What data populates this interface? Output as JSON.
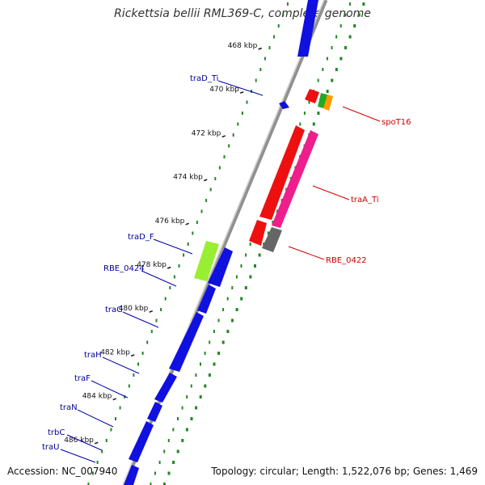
{
  "title": "Rickettsia bellii RML369-C, complete genome",
  "footer": {
    "accession": "Accession: NC_007940",
    "summary": "Topology: circular; Length: 1,522,076 bp; Genes: 1,469"
  },
  "ticks": [
    {
      "kbp": 468,
      "label": "468 kbp"
    },
    {
      "kbp": 470,
      "label": "470 kbp"
    },
    {
      "kbp": 472,
      "label": "472 kbp"
    },
    {
      "kbp": 474,
      "label": "474 kbp"
    },
    {
      "kbp": 476,
      "label": "476 kbp"
    },
    {
      "kbp": 478,
      "label": "478 kbp"
    },
    {
      "kbp": 480,
      "label": "480 kbp"
    },
    {
      "kbp": 482,
      "label": "482 kbp"
    },
    {
      "kbp": 484,
      "label": "484 kbp"
    },
    {
      "kbp": 486,
      "label": "486 kbp"
    }
  ],
  "gene_labels": {
    "left": [
      "traD_Ti",
      "traD_F",
      "RBE_0424",
      "traG",
      "traH",
      "traF",
      "traN",
      "trbC",
      "traU"
    ],
    "right": [
      "spoT16",
      "traA_Ti",
      "RBE_0422"
    ]
  },
  "colors": {
    "cds_blue": "#1010e0",
    "red": "#ee1010",
    "magenta": "#ee1e8c",
    "lime": "#99ee33",
    "green": "#22aa22",
    "orange": "#ff9900",
    "grey": "#666666",
    "backbone": "#999999",
    "gc_dots": "#228822",
    "label_blue": "#000099",
    "label_red": "#cc0000"
  }
}
